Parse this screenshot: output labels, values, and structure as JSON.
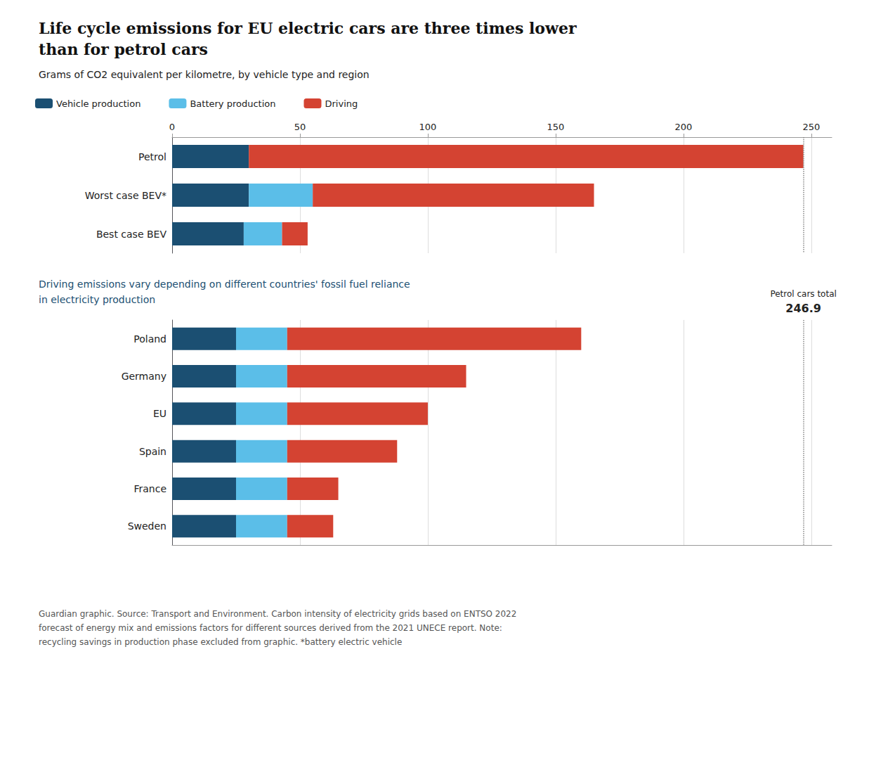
{
  "chart_data": [
    {
      "type": "bar",
      "orientation": "horizontal",
      "stacked": true,
      "grid": true,
      "legend": "top",
      "title": "Life cycle emissions for EU electric cars are three times lower\nthan for petrol cars",
      "subtitle": "Grams of CO2 equivalent per kilometre, by vehicle type and region",
      "categories": [
        "Petrol",
        "Worst case BEV*",
        "Best case BEV"
      ],
      "series": [
        {
          "name": "Vehicle production",
          "color": "#1b4f72",
          "values": [
            30,
            30,
            28
          ]
        },
        {
          "name": "Battery production",
          "color": "#5bbee8",
          "values": [
            0,
            25,
            15
          ]
        },
        {
          "name": "Driving",
          "color": "#d44332",
          "values": [
            216.9,
            110,
            10
          ]
        }
      ],
      "xlim": [
        0,
        258
      ],
      "xticks": [
        0,
        50,
        100,
        150,
        200,
        250
      ],
      "reference_line": {
        "value": 246.9
      }
    },
    {
      "type": "bar",
      "orientation": "horizontal",
      "stacked": true,
      "grid": true,
      "tick_labels": "y",
      "subtitle": "Driving emissions vary depending on different countries' fossil fuel reliance\nin electricity production",
      "categories": [
        "Poland",
        "Germany",
        "EU",
        "Spain",
        "France",
        "Sweden"
      ],
      "series": [
        {
          "name": "Vehicle production",
          "color": "#1b4f72",
          "values": [
            25,
            25,
            25,
            25,
            25,
            25
          ]
        },
        {
          "name": "Battery production",
          "color": "#5bbee8",
          "values": [
            20,
            20,
            20,
            20,
            20,
            20
          ]
        },
        {
          "name": "Driving",
          "color": "#d44332",
          "values": [
            115,
            70,
            55,
            43,
            20,
            18
          ]
        }
      ],
      "xlim": [
        0,
        258
      ],
      "xticks": [
        0,
        50,
        100,
        150,
        200,
        250
      ],
      "reference_line": {
        "value": 246.9,
        "label": "Petrol cars total",
        "value_label": "246.9"
      },
      "footnote": "Guardian graphic. Source: Transport and Environment. Carbon intensity of electricity grids based on ENTSO 2022\nforecast of energy mix and emissions factors for different sources derived from the 2021 UNECE report. Note:\nrecycling savings in production phase excluded from graphic. *battery electric vehicle"
    }
  ]
}
